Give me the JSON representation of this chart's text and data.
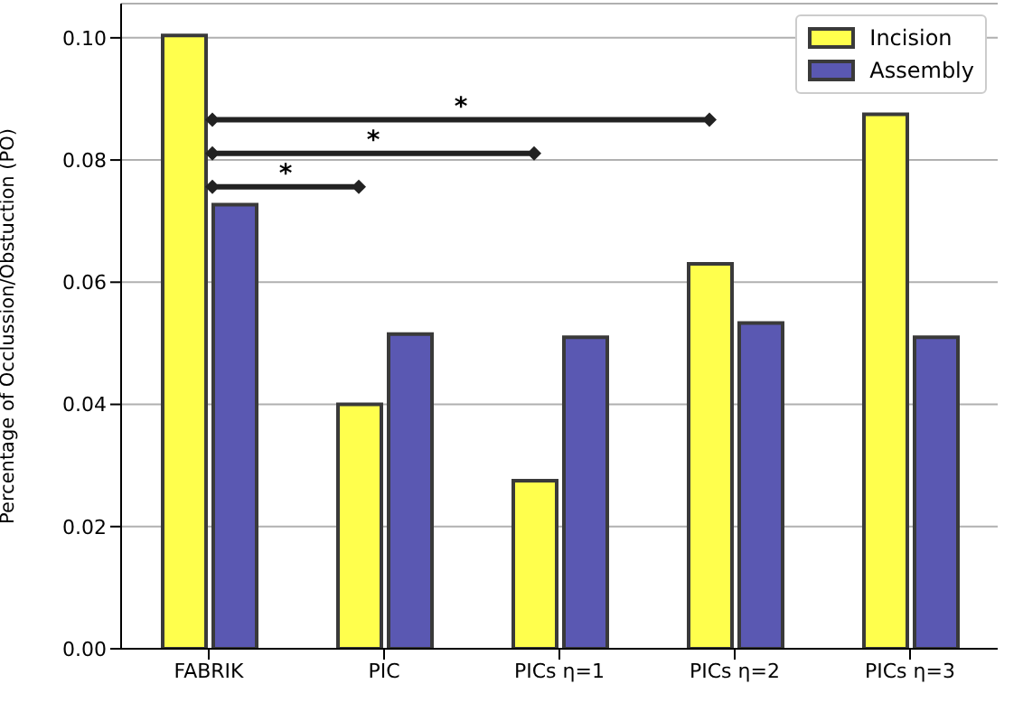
{
  "chart_data": {
    "type": "bar",
    "ylabel": "Percentage of Occlussion/Obstuction (PO)",
    "categories": [
      "FABRIK",
      "PIC",
      "PICs η=1",
      "PICs η=2",
      "PICs η=3"
    ],
    "series": [
      {
        "name": "Incision",
        "color": "#ffff4d",
        "values": [
          0.1004,
          0.04,
          0.0275,
          0.063,
          0.0875
        ]
      },
      {
        "name": "Assembly",
        "color": "#5a58b2",
        "values": [
          0.0727,
          0.0515,
          0.051,
          0.0533,
          0.051
        ]
      }
    ],
    "ylim": [
      0,
      0.1056
    ],
    "yticks": [
      {
        "value": 0,
        "label": "0.00"
      },
      {
        "value": 0.02,
        "label": "0.02"
      },
      {
        "value": 0.04,
        "label": "0.04"
      },
      {
        "value": 0.06,
        "label": "0.06"
      },
      {
        "value": 0.08,
        "label": "0.08"
      },
      {
        "value": 0.1,
        "label": "0.10"
      }
    ],
    "grid": "y",
    "legend": "top right",
    "annotations": [
      "*",
      "*",
      "*"
    ]
  }
}
